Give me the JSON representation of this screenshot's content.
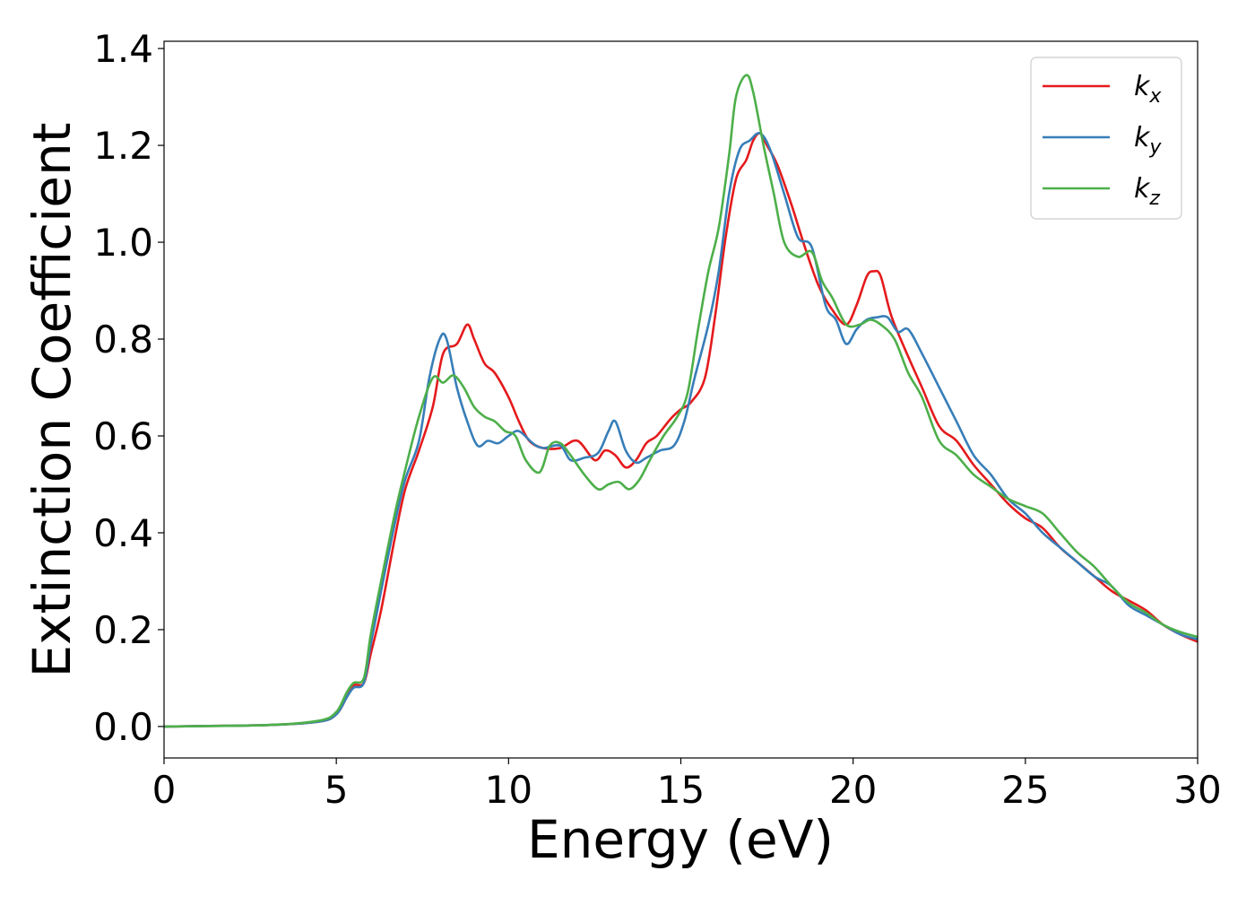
{
  "chart_data": {
    "type": "line",
    "title": "",
    "xlabel": "Energy (eV)",
    "ylabel": "Extinction Coefficient",
    "xlim": [
      0,
      30
    ],
    "ylim": [
      -0.065,
      1.415
    ],
    "xticks": [
      0,
      5,
      10,
      15,
      20,
      25,
      30
    ],
    "xtick_labels": [
      "0",
      "5",
      "10",
      "15",
      "20",
      "25",
      "30"
    ],
    "yticks": [
      0.0,
      0.2,
      0.4,
      0.6,
      0.8,
      1.0,
      1.2,
      1.4
    ],
    "ytick_labels": [
      "0.0",
      "0.2",
      "0.4",
      "0.6",
      "0.8",
      "1.0",
      "1.2",
      "1.4"
    ],
    "grid": false,
    "legend_position": "top-right",
    "series": [
      {
        "name": "k",
        "subscript": "x",
        "color": "#e41a1c",
        "x": [
          0,
          3,
          4.5,
          5.0,
          5.3,
          5.5,
          5.8,
          6.0,
          6.3,
          6.7,
          7.0,
          7.4,
          7.8,
          8.1,
          8.5,
          8.8,
          9.0,
          9.3,
          9.6,
          10.0,
          10.3,
          10.6,
          11.0,
          11.5,
          12.0,
          12.5,
          12.8,
          13.1,
          13.4,
          13.7,
          14.0,
          14.3,
          14.7,
          15.0,
          15.3,
          15.7,
          16.0,
          16.3,
          16.6,
          16.9,
          17.1,
          17.3,
          17.5,
          17.8,
          18.2,
          18.6,
          19.0,
          19.4,
          19.8,
          20.1,
          20.4,
          20.6,
          20.8,
          21.1,
          21.5,
          22.0,
          22.5,
          23.0,
          23.5,
          24.0,
          24.5,
          25.0,
          25.5,
          26.0,
          26.5,
          27.0,
          27.5,
          28.0,
          28.5,
          29.0,
          29.5,
          30.0
        ],
        "values": [
          0.0,
          0.003,
          0.01,
          0.025,
          0.06,
          0.085,
          0.09,
          0.15,
          0.24,
          0.39,
          0.49,
          0.57,
          0.66,
          0.77,
          0.79,
          0.83,
          0.8,
          0.75,
          0.73,
          0.68,
          0.63,
          0.59,
          0.575,
          0.575,
          0.59,
          0.55,
          0.57,
          0.56,
          0.535,
          0.55,
          0.585,
          0.6,
          0.635,
          0.655,
          0.67,
          0.72,
          0.85,
          1.01,
          1.13,
          1.17,
          1.21,
          1.225,
          1.2,
          1.16,
          1.08,
          0.99,
          0.91,
          0.86,
          0.83,
          0.87,
          0.93,
          0.94,
          0.93,
          0.85,
          0.78,
          0.7,
          0.62,
          0.59,
          0.54,
          0.5,
          0.46,
          0.43,
          0.41,
          0.37,
          0.34,
          0.31,
          0.28,
          0.26,
          0.24,
          0.21,
          0.19,
          0.175
        ]
      },
      {
        "name": "k",
        "subscript": "y",
        "color": "#377eb8",
        "x": [
          0,
          3,
          4.5,
          5.0,
          5.3,
          5.5,
          5.8,
          6.0,
          6.3,
          6.7,
          7.0,
          7.4,
          7.7,
          8.0,
          8.2,
          8.5,
          8.8,
          9.1,
          9.4,
          9.7,
          10.0,
          10.3,
          10.7,
          11.0,
          11.5,
          11.8,
          12.2,
          12.6,
          12.9,
          13.1,
          13.4,
          13.7,
          14.0,
          14.4,
          14.8,
          15.1,
          15.4,
          15.8,
          16.1,
          16.4,
          16.7,
          17.0,
          17.3,
          17.6,
          18.0,
          18.4,
          18.8,
          19.2,
          19.5,
          19.8,
          20.1,
          20.4,
          20.7,
          21.0,
          21.3,
          21.6,
          22.0,
          22.5,
          23.0,
          23.5,
          24.0,
          24.5,
          25.0,
          25.5,
          26.0,
          26.5,
          27.0,
          27.5,
          28.0,
          28.5,
          29.0,
          29.5,
          30.0
        ],
        "values": [
          0.0,
          0.003,
          0.01,
          0.025,
          0.06,
          0.08,
          0.09,
          0.17,
          0.28,
          0.42,
          0.51,
          0.59,
          0.72,
          0.8,
          0.8,
          0.7,
          0.63,
          0.58,
          0.59,
          0.585,
          0.6,
          0.61,
          0.585,
          0.575,
          0.58,
          0.55,
          0.555,
          0.565,
          0.61,
          0.63,
          0.57,
          0.545,
          0.555,
          0.57,
          0.58,
          0.63,
          0.72,
          0.83,
          0.94,
          1.1,
          1.19,
          1.21,
          1.225,
          1.19,
          1.1,
          1.01,
          0.99,
          0.87,
          0.84,
          0.79,
          0.82,
          0.84,
          0.845,
          0.845,
          0.815,
          0.82,
          0.77,
          0.7,
          0.63,
          0.56,
          0.52,
          0.47,
          0.44,
          0.4,
          0.37,
          0.34,
          0.31,
          0.29,
          0.25,
          0.23,
          0.21,
          0.19,
          0.18
        ]
      },
      {
        "name": "k",
        "subscript": "z",
        "color": "#4daf4a",
        "x": [
          0,
          3,
          4.5,
          5.0,
          5.3,
          5.5,
          5.8,
          6.0,
          6.3,
          6.7,
          7.0,
          7.4,
          7.8,
          8.1,
          8.4,
          8.7,
          9.0,
          9.3,
          9.6,
          9.9,
          10.2,
          10.5,
          10.9,
          11.2,
          11.5,
          11.8,
          12.2,
          12.6,
          12.9,
          13.2,
          13.5,
          13.8,
          14.1,
          14.5,
          14.9,
          15.2,
          15.5,
          15.8,
          16.1,
          16.4,
          16.6,
          16.9,
          17.1,
          17.4,
          17.7,
          18.0,
          18.4,
          18.8,
          19.1,
          19.4,
          19.8,
          20.2,
          20.5,
          20.8,
          21.2,
          21.6,
          22.0,
          22.5,
          23.0,
          23.5,
          24.0,
          24.5,
          25.0,
          25.5,
          26.0,
          26.5,
          27.0,
          27.5,
          28.0,
          28.5,
          29.0,
          29.5,
          30.0
        ],
        "values": [
          0.0,
          0.003,
          0.012,
          0.03,
          0.07,
          0.09,
          0.1,
          0.19,
          0.3,
          0.44,
          0.53,
          0.64,
          0.72,
          0.71,
          0.725,
          0.7,
          0.66,
          0.64,
          0.63,
          0.61,
          0.6,
          0.55,
          0.525,
          0.58,
          0.585,
          0.56,
          0.52,
          0.49,
          0.5,
          0.505,
          0.49,
          0.51,
          0.55,
          0.6,
          0.64,
          0.69,
          0.82,
          0.94,
          1.03,
          1.18,
          1.3,
          1.345,
          1.31,
          1.2,
          1.1,
          1.0,
          0.97,
          0.98,
          0.92,
          0.885,
          0.83,
          0.83,
          0.84,
          0.83,
          0.8,
          0.73,
          0.68,
          0.59,
          0.56,
          0.52,
          0.495,
          0.47,
          0.455,
          0.44,
          0.4,
          0.36,
          0.33,
          0.29,
          0.255,
          0.235,
          0.21,
          0.195,
          0.185
        ]
      }
    ]
  }
}
